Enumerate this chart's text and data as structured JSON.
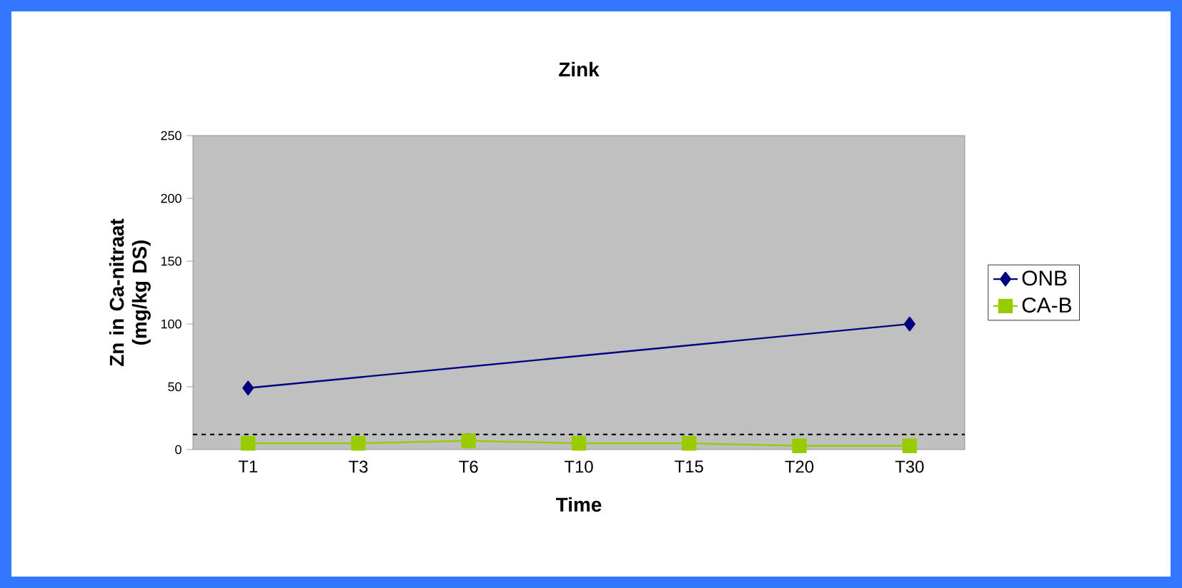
{
  "chart_data": {
    "type": "line",
    "title": "Zink",
    "xlabel": "Time",
    "ylabel": "Zn in Ca-nitraat (mg/kg DS)",
    "categories": [
      "T1",
      "T3",
      "T6",
      "T10",
      "T15",
      "T20",
      "T30"
    ],
    "series": [
      {
        "name": "ONB",
        "color": "#000080",
        "marker": "diamond",
        "values": [
          49,
          null,
          null,
          null,
          null,
          null,
          100
        ]
      },
      {
        "name": "CA-B",
        "color": "#99cc00",
        "marker": "square",
        "values": [
          5,
          5,
          7,
          5,
          5,
          3,
          3
        ]
      }
    ],
    "ylim": [
      0,
      250
    ],
    "yticks": [
      0,
      50,
      100,
      150,
      200,
      250
    ],
    "ref_lines": [
      {
        "axis": "y",
        "value": 12,
        "color": "#000000",
        "line_style": "dashed"
      }
    ],
    "legend": "right",
    "grid": false
  }
}
